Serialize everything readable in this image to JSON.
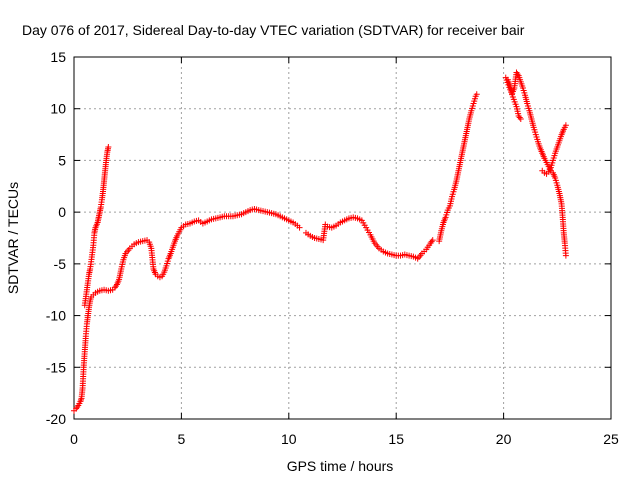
{
  "chart_data": {
    "type": "scatter",
    "title": "Day 076 of 2017, Sidereal Day-to-day VTEC variation (SDTVAR) for receiver bair",
    "xlabel": "GPS time / hours",
    "ylabel": "SDTVAR / TECUs",
    "xlim": [
      0,
      25
    ],
    "ylim": [
      -20,
      15
    ],
    "xticks": [
      "0",
      "5",
      "10",
      "15",
      "20",
      "25"
    ],
    "yticks": [
      "15",
      "10",
      "5",
      "0",
      "-5",
      "-10",
      "-15",
      "-20"
    ],
    "grid": true,
    "marker": "+",
    "color": "#ff0000",
    "series": [
      {
        "points": [
          [
            0.0,
            -19.2
          ],
          [
            0.1,
            -19.0
          ],
          [
            0.2,
            -18.7
          ],
          [
            0.3,
            -18.3
          ],
          [
            0.35,
            -18.0
          ],
          [
            0.4,
            -17.0
          ],
          [
            0.45,
            -15.0
          ],
          [
            0.5,
            -13.5
          ],
          [
            0.55,
            -12.0
          ],
          [
            0.6,
            -10.8
          ],
          [
            0.65,
            -10.0
          ],
          [
            0.7,
            -9.2
          ],
          [
            0.75,
            -8.6
          ],
          [
            0.8,
            -8.2
          ],
          [
            0.9,
            -8.0
          ],
          [
            1.0,
            -7.8
          ],
          [
            1.2,
            -7.6
          ],
          [
            1.4,
            -7.5
          ],
          [
            1.6,
            -7.6
          ],
          [
            1.8,
            -7.5
          ],
          [
            1.9,
            -7.3
          ],
          [
            2.0,
            -7.0
          ],
          [
            2.1,
            -6.5
          ],
          [
            2.2,
            -5.5
          ],
          [
            2.3,
            -4.6
          ],
          [
            2.4,
            -4.0
          ],
          [
            2.6,
            -3.5
          ],
          [
            2.8,
            -3.1
          ],
          [
            3.0,
            -2.9
          ],
          [
            3.2,
            -2.8
          ],
          [
            3.4,
            -2.7
          ],
          [
            3.5,
            -2.9
          ],
          [
            3.6,
            -3.5
          ],
          [
            3.7,
            -5.5
          ],
          [
            3.8,
            -6.0
          ],
          [
            3.9,
            -6.2
          ],
          [
            4.0,
            -6.3
          ],
          [
            4.1,
            -6.2
          ],
          [
            4.2,
            -5.8
          ],
          [
            4.3,
            -5.2
          ],
          [
            4.4,
            -4.5
          ],
          [
            4.5,
            -4.0
          ],
          [
            4.6,
            -3.4
          ],
          [
            4.7,
            -2.8
          ],
          [
            4.8,
            -2.3
          ],
          [
            4.9,
            -1.9
          ],
          [
            5.0,
            -1.5
          ],
          [
            5.2,
            -1.2
          ],
          [
            5.4,
            -1.1
          ],
          [
            5.6,
            -0.9
          ],
          [
            5.8,
            -0.8
          ],
          [
            6.0,
            -1.1
          ],
          [
            6.2,
            -0.9
          ],
          [
            6.4,
            -0.7
          ],
          [
            6.6,
            -0.6
          ],
          [
            6.8,
            -0.5
          ],
          [
            7.0,
            -0.4
          ],
          [
            7.2,
            -0.4
          ],
          [
            7.4,
            -0.4
          ],
          [
            7.6,
            -0.3
          ],
          [
            7.8,
            -0.2
          ],
          [
            8.0,
            0.0
          ],
          [
            8.2,
            0.2
          ],
          [
            8.4,
            0.3
          ],
          [
            8.6,
            0.2
          ],
          [
            8.8,
            0.1
          ],
          [
            9.0,
            0.0
          ],
          [
            9.2,
            -0.1
          ],
          [
            9.4,
            -0.2
          ],
          [
            9.6,
            -0.4
          ],
          [
            9.8,
            -0.6
          ],
          [
            10.0,
            -0.8
          ],
          [
            10.2,
            -1.0
          ],
          [
            10.4,
            -1.3
          ],
          [
            10.5,
            -1.5
          ]
        ]
      },
      {
        "points": [
          [
            0.5,
            -9.0
          ],
          [
            0.6,
            -7.5
          ],
          [
            0.7,
            -6.0
          ],
          [
            0.75,
            -5.5
          ],
          [
            0.8,
            -4.8
          ],
          [
            0.9,
            -3.2
          ],
          [
            0.95,
            -2.0
          ],
          [
            1.0,
            -1.5
          ],
          [
            1.1,
            -1.0
          ],
          [
            1.15,
            -0.5
          ],
          [
            1.2,
            0.0
          ],
          [
            1.25,
            0.5
          ],
          [
            1.3,
            1.2
          ],
          [
            1.35,
            2.0
          ],
          [
            1.4,
            3.0
          ],
          [
            1.45,
            4.0
          ],
          [
            1.5,
            5.0
          ],
          [
            1.55,
            5.8
          ],
          [
            1.6,
            6.3
          ]
        ]
      },
      {
        "points": [
          [
            10.8,
            -2.0
          ],
          [
            11.0,
            -2.3
          ],
          [
            11.2,
            -2.5
          ],
          [
            11.4,
            -2.6
          ],
          [
            11.6,
            -2.7
          ],
          [
            11.7,
            -1.2
          ],
          [
            11.8,
            -1.4
          ],
          [
            12.0,
            -1.5
          ],
          [
            12.2,
            -1.3
          ],
          [
            12.4,
            -1.0
          ],
          [
            12.6,
            -0.8
          ],
          [
            12.8,
            -0.6
          ],
          [
            13.0,
            -0.5
          ],
          [
            13.2,
            -0.6
          ],
          [
            13.4,
            -0.8
          ],
          [
            13.6,
            -1.5
          ],
          [
            13.8,
            -2.2
          ],
          [
            14.0,
            -3.0
          ],
          [
            14.2,
            -3.5
          ],
          [
            14.4,
            -3.8
          ],
          [
            14.6,
            -4.0
          ],
          [
            14.8,
            -4.1
          ],
          [
            15.0,
            -4.2
          ],
          [
            15.2,
            -4.2
          ],
          [
            15.4,
            -4.1
          ],
          [
            15.6,
            -4.2
          ],
          [
            15.8,
            -4.3
          ],
          [
            16.0,
            -4.5
          ],
          [
            16.2,
            -4.0
          ],
          [
            16.4,
            -3.6
          ],
          [
            16.6,
            -3.0
          ],
          [
            16.7,
            -2.7
          ]
        ]
      },
      {
        "points": [
          [
            17.0,
            -2.8
          ],
          [
            17.1,
            -1.8
          ],
          [
            17.2,
            -1.0
          ],
          [
            17.3,
            -0.5
          ],
          [
            17.4,
            0.2
          ],
          [
            17.5,
            0.6
          ],
          [
            17.6,
            1.5
          ],
          [
            17.7,
            2.2
          ],
          [
            17.8,
            3.0
          ],
          [
            17.9,
            4.0
          ],
          [
            18.0,
            5.0
          ],
          [
            18.1,
            6.0
          ],
          [
            18.2,
            7.0
          ],
          [
            18.3,
            8.0
          ],
          [
            18.4,
            9.0
          ],
          [
            18.5,
            9.8
          ],
          [
            18.6,
            10.5
          ],
          [
            18.7,
            11.2
          ],
          [
            18.75,
            11.4
          ]
        ]
      },
      {
        "points": [
          [
            20.2,
            12.8
          ],
          [
            20.3,
            12.2
          ],
          [
            20.4,
            11.5
          ],
          [
            20.5,
            12.0
          ],
          [
            20.6,
            13.5
          ],
          [
            20.7,
            13.2
          ],
          [
            20.8,
            12.6
          ],
          [
            20.9,
            12.0
          ],
          [
            21.0,
            11.3
          ],
          [
            21.1,
            10.5
          ],
          [
            21.2,
            9.8
          ],
          [
            21.3,
            9.0
          ],
          [
            21.4,
            8.2
          ],
          [
            21.5,
            7.5
          ],
          [
            21.6,
            6.8
          ],
          [
            21.7,
            6.2
          ],
          [
            21.8,
            5.7
          ],
          [
            21.9,
            5.2
          ],
          [
            22.0,
            4.8
          ],
          [
            22.1,
            4.4
          ],
          [
            22.2,
            4.0
          ],
          [
            22.3,
            3.8
          ],
          [
            22.4,
            3.3
          ],
          [
            22.5,
            2.6
          ],
          [
            22.6,
            1.8
          ],
          [
            22.7,
            0.8
          ],
          [
            22.75,
            -0.5
          ],
          [
            22.8,
            -2.0
          ],
          [
            22.85,
            -3.0
          ],
          [
            22.9,
            -4.2
          ],
          [
            20.1,
            13.0
          ],
          [
            20.6,
            10.2
          ],
          [
            20.7,
            9.3
          ],
          [
            20.8,
            9.0
          ]
        ]
      },
      {
        "points": [
          [
            21.8,
            4.0
          ],
          [
            21.9,
            3.8
          ],
          [
            22.0,
            3.7
          ],
          [
            22.1,
            3.9
          ],
          [
            22.2,
            4.3
          ],
          [
            22.3,
            5.0
          ],
          [
            22.4,
            5.7
          ],
          [
            22.5,
            6.3
          ],
          [
            22.6,
            6.9
          ],
          [
            22.7,
            7.5
          ],
          [
            22.8,
            8.0
          ],
          [
            22.9,
            8.4
          ]
        ]
      }
    ]
  }
}
